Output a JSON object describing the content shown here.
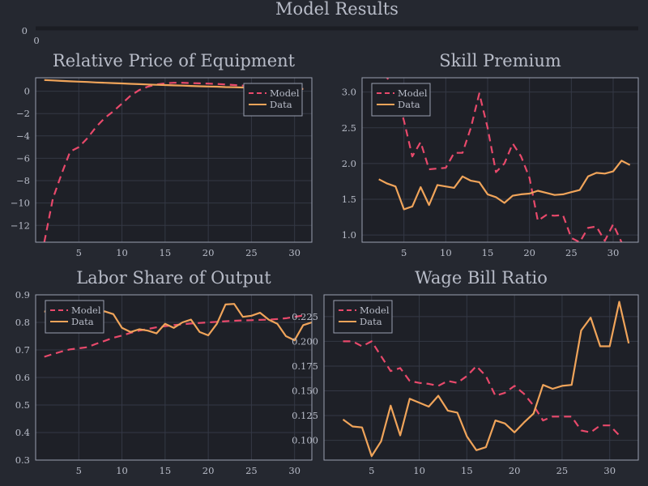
{
  "title": "Model Results",
  "colors": {
    "background": "#252830",
    "plot_bg": "#1e2027",
    "frame": "#9aa0b0",
    "grid": "#343845",
    "text": "#b8bcc8",
    "model": "#e8496b",
    "data": "#f0a45a"
  },
  "top_strip": {
    "y_tick": "0",
    "x_tick": "0"
  },
  "chart_data": [
    {
      "type": "line",
      "title": "Relative Price of Equipment",
      "xlim": [
        0,
        32
      ],
      "ylim": [
        -13.5,
        1.2
      ],
      "xticks": [
        5,
        10,
        15,
        20,
        25,
        30
      ],
      "yticks": [
        0,
        -2,
        -4,
        -6,
        -8,
        -10,
        -12
      ],
      "ytick_labels": [
        "0",
        "−2",
        "−4",
        "−6",
        "−8",
        "−10",
        "−12"
      ],
      "legend": "top-right",
      "series": [
        {
          "name": "Model",
          "style": "dashed",
          "x": [
            1,
            2,
            3,
            4,
            5,
            6,
            7,
            8,
            9,
            10,
            11,
            12,
            13,
            14,
            15,
            16,
            17,
            18,
            19,
            20,
            21,
            22,
            23,
            24,
            25,
            26,
            27,
            28,
            29,
            30,
            31
          ],
          "y": [
            -13.5,
            -9.6,
            -7.4,
            -5.4,
            -5.0,
            -4.2,
            -3.2,
            -2.4,
            -1.8,
            -1.1,
            -0.4,
            0.1,
            0.4,
            0.6,
            0.7,
            0.75,
            0.75,
            0.72,
            0.7,
            0.68,
            0.65,
            0.6,
            0.55,
            0.5,
            0.45,
            0.4,
            0.35,
            0.3,
            0.28,
            0.25,
            0.2
          ]
        },
        {
          "name": "Data",
          "style": "solid",
          "x": [
            1,
            2,
            3,
            4,
            5,
            6,
            7,
            8,
            9,
            10,
            11,
            12,
            13,
            14,
            15,
            16,
            17,
            18,
            19,
            20,
            21,
            22,
            23,
            24,
            25,
            26,
            27,
            28,
            29,
            30,
            31
          ],
          "y": [
            1.0,
            0.96,
            0.92,
            0.88,
            0.85,
            0.82,
            0.78,
            0.75,
            0.72,
            0.69,
            0.66,
            0.63,
            0.6,
            0.57,
            0.55,
            0.52,
            0.5,
            0.47,
            0.44,
            0.42,
            0.4,
            0.37,
            0.35,
            0.33,
            0.31,
            0.29,
            0.27,
            0.25,
            0.23,
            0.21,
            0.2
          ]
        }
      ]
    },
    {
      "type": "line",
      "title": "Skill Premium",
      "xlim": [
        0,
        33
      ],
      "ylim": [
        0.9,
        3.2
      ],
      "xticks": [
        5,
        10,
        15,
        20,
        25,
        30
      ],
      "yticks": [
        1.0,
        1.5,
        2.0,
        2.5,
        3.0
      ],
      "ytick_labels": [
        "1.0",
        "1.5",
        "2.0",
        "2.5",
        "3.0"
      ],
      "legend": "top-left",
      "series": [
        {
          "name": "Model",
          "style": "dashed",
          "x": [
            2,
            3,
            4,
            5,
            6,
            7,
            8,
            9,
            10,
            11,
            12,
            13,
            14,
            15,
            16,
            17,
            18,
            19,
            20,
            21,
            22,
            23,
            24,
            25,
            26,
            27,
            28,
            29,
            30,
            31
          ],
          "y": [
            3.6,
            3.2,
            3.0,
            2.6,
            2.1,
            2.3,
            1.92,
            1.93,
            1.94,
            2.15,
            2.15,
            2.5,
            2.98,
            2.5,
            1.88,
            2.0,
            2.28,
            2.1,
            1.8,
            1.2,
            1.28,
            1.27,
            1.28,
            0.96,
            0.9,
            1.1,
            1.12,
            0.92,
            1.15,
            0.9
          ]
        },
        {
          "name": "Data",
          "style": "solid",
          "x": [
            2,
            3,
            4,
            5,
            6,
            7,
            8,
            9,
            10,
            11,
            12,
            13,
            14,
            15,
            16,
            17,
            18,
            19,
            20,
            21,
            22,
            23,
            24,
            25,
            26,
            27,
            28,
            29,
            30,
            31,
            32
          ],
          "y": [
            1.78,
            1.72,
            1.68,
            1.36,
            1.4,
            1.67,
            1.42,
            1.7,
            1.68,
            1.66,
            1.82,
            1.76,
            1.74,
            1.57,
            1.53,
            1.45,
            1.55,
            1.57,
            1.58,
            1.62,
            1.59,
            1.56,
            1.57,
            1.6,
            1.63,
            1.82,
            1.87,
            1.86,
            1.89,
            2.04,
            1.98
          ]
        }
      ]
    },
    {
      "type": "line",
      "title": "Labor Share of Output",
      "xlim": [
        0,
        32
      ],
      "ylim": [
        0.3,
        0.9
      ],
      "xticks": [
        5,
        10,
        15,
        20,
        25,
        30
      ],
      "yticks": [
        0.3,
        0.4,
        0.5,
        0.6,
        0.7,
        0.8,
        0.9
      ],
      "ytick_labels": [
        "0.3",
        "0.4",
        "0.5",
        "0.6",
        "0.7",
        "0.8",
        "0.9"
      ],
      "legend": "top-left",
      "series": [
        {
          "name": "Model",
          "style": "dashed",
          "x": [
            1,
            2,
            3,
            4,
            5,
            6,
            7,
            8,
            9,
            10,
            11,
            12,
            13,
            14,
            15,
            16,
            17,
            18,
            19,
            20,
            21,
            22,
            23,
            24,
            25,
            26,
            27,
            28,
            29,
            30,
            31
          ],
          "y": [
            0.675,
            0.685,
            0.694,
            0.702,
            0.706,
            0.71,
            0.722,
            0.733,
            0.744,
            0.752,
            0.762,
            0.77,
            0.776,
            0.782,
            0.786,
            0.79,
            0.793,
            0.796,
            0.798,
            0.8,
            0.802,
            0.804,
            0.806,
            0.807,
            0.808,
            0.809,
            0.81,
            0.812,
            0.815,
            0.82,
            0.825
          ]
        },
        {
          "name": "Data",
          "style": "solid",
          "x": [
            1,
            2,
            3,
            4,
            5,
            6,
            7,
            8,
            9,
            10,
            11,
            12,
            13,
            14,
            15,
            16,
            17,
            18,
            19,
            20,
            21,
            22,
            23,
            24,
            25,
            26,
            27,
            28,
            29,
            30,
            31,
            32
          ],
          "y": [
            0.84,
            0.835,
            0.838,
            0.84,
            0.842,
            0.84,
            0.838,
            0.84,
            0.83,
            0.78,
            0.765,
            0.775,
            0.77,
            0.76,
            0.795,
            0.78,
            0.8,
            0.81,
            0.765,
            0.753,
            0.795,
            0.865,
            0.867,
            0.82,
            0.824,
            0.835,
            0.81,
            0.795,
            0.75,
            0.735,
            0.79,
            0.8
          ]
        }
      ]
    },
    {
      "type": "line",
      "title": "Wage Bill Ratio",
      "xlim": [
        0,
        33
      ],
      "ylim": [
        0.08,
        0.247
      ],
      "xticks": [
        5,
        10,
        15,
        20,
        25,
        30
      ],
      "yticks": [
        0.1,
        0.125,
        0.15,
        0.175,
        0.2,
        0.225
      ],
      "ytick_labels": [
        "0.100",
        "0.125",
        "0.150",
        "0.175",
        "0.200",
        "0.225"
      ],
      "legend": "top-left",
      "series": [
        {
          "name": "Model",
          "style": "dashed",
          "x": [
            2,
            3,
            4,
            5,
            6,
            7,
            8,
            9,
            10,
            11,
            12,
            13,
            14,
            15,
            16,
            17,
            18,
            19,
            20,
            21,
            22,
            23,
            24,
            25,
            26,
            27,
            28,
            29,
            30,
            31
          ],
          "y": [
            0.2,
            0.2,
            0.195,
            0.2,
            0.185,
            0.17,
            0.173,
            0.16,
            0.158,
            0.157,
            0.155,
            0.16,
            0.158,
            0.165,
            0.175,
            0.165,
            0.145,
            0.148,
            0.155,
            0.147,
            0.135,
            0.12,
            0.124,
            0.124,
            0.124,
            0.11,
            0.108,
            0.115,
            0.115,
            0.105
          ]
        },
        {
          "name": "Data",
          "style": "solid",
          "x": [
            2,
            3,
            4,
            5,
            6,
            7,
            8,
            9,
            10,
            11,
            12,
            13,
            14,
            15,
            16,
            17,
            18,
            19,
            20,
            21,
            22,
            23,
            24,
            25,
            26,
            27,
            28,
            29,
            30,
            31,
            32
          ],
          "y": [
            0.121,
            0.114,
            0.113,
            0.084,
            0.099,
            0.135,
            0.105,
            0.142,
            0.138,
            0.134,
            0.145,
            0.13,
            0.128,
            0.104,
            0.09,
            0.093,
            0.12,
            0.117,
            0.108,
            0.118,
            0.127,
            0.156,
            0.152,
            0.155,
            0.156,
            0.211,
            0.224,
            0.195,
            0.195,
            0.24,
            0.198
          ]
        }
      ]
    }
  ]
}
